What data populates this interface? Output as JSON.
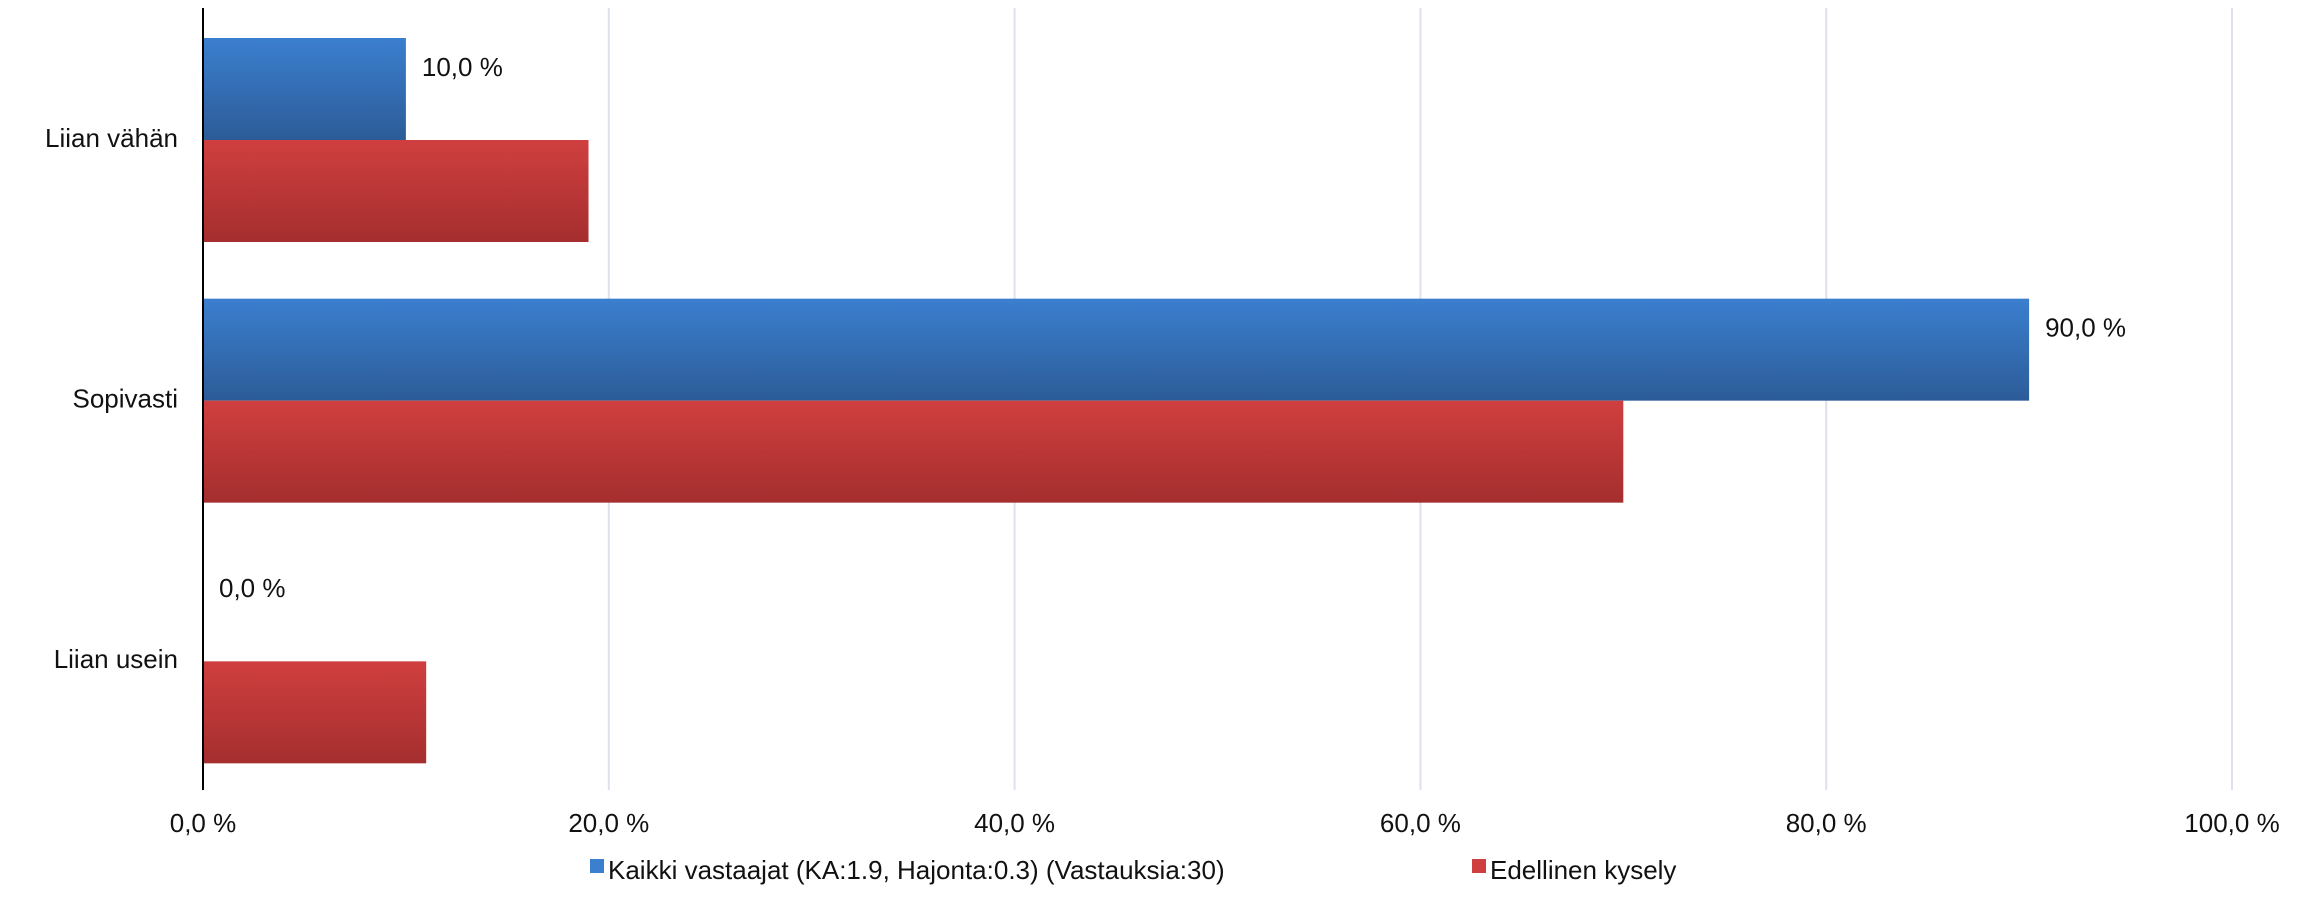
{
  "chart_data": {
    "type": "bar",
    "orientation": "horizontal",
    "categories": [
      "Liian vähän",
      "Sopivasti",
      "Liian usein"
    ],
    "series": [
      {
        "name": "Kaikki vastaajat (KA:1.9, Hajonta:0.3) (Vastauksia:30)",
        "values": [
          10.0,
          90.0,
          0.0
        ],
        "data_labels": [
          "10,0 %",
          "90,0 %",
          "0,0 %"
        ],
        "color": "#3b7fcf",
        "color_dark": "#2c5c98"
      },
      {
        "name": "Edellinen kysely",
        "values": [
          19.0,
          70.0,
          11.0
        ],
        "color": "#d03f3f",
        "color_dark": "#a52e2e"
      }
    ],
    "xlim": [
      0,
      100
    ],
    "x_ticks": [
      0,
      20,
      40,
      60,
      80,
      100
    ],
    "x_tick_labels": [
      "0,0 %",
      "20,0 %",
      "40,0 %",
      "60,0 %",
      "80,0 %",
      "100,0 %"
    ],
    "grid": "vertical",
    "gridline_color": "#dde1ec",
    "legend_position": "bottom"
  }
}
